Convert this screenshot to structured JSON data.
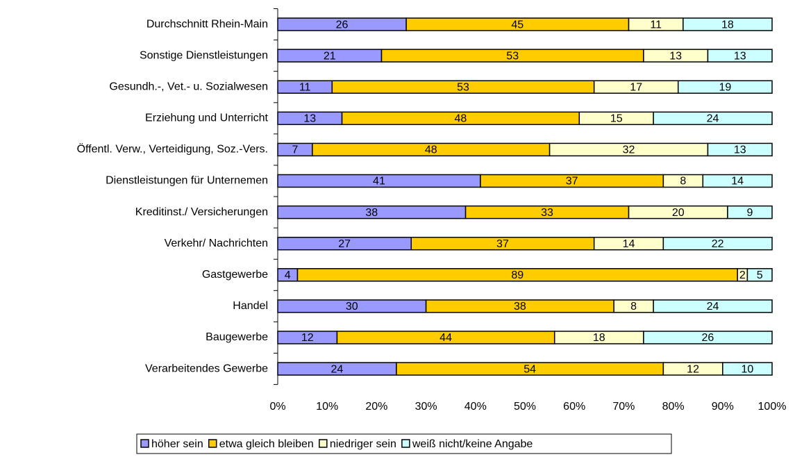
{
  "chart_data": {
    "type": "stacked-bar-horizontal",
    "categories": [
      "Durchschnitt Rhein-Main",
      "Sonstige Dienstleistungen",
      "Gesundh.-, Vet.- u. Sozialwesen",
      "Erziehung und Unterricht",
      "Öffentl. Verw., Verteidigung, Soz.-Vers.",
      "Dienstleistungen für Unternemen",
      "Kreditinst./ Versicherungen",
      "Verkehr/ Nachrichten",
      "Gastgewerbe",
      "Handel",
      "Baugewerbe",
      "Verarbeitendes Gewerbe"
    ],
    "series": [
      {
        "name": "höher sein",
        "color": "#9999ff",
        "values": [
          26,
          21,
          11,
          13,
          7,
          41,
          38,
          27,
          4,
          30,
          12,
          24
        ]
      },
      {
        "name": "etwa gleich bleiben",
        "color": "#ffcc00",
        "values": [
          45,
          53,
          53,
          48,
          48,
          37,
          33,
          37,
          89,
          38,
          44,
          54
        ]
      },
      {
        "name": "niedriger sein",
        "color": "#ffffcc",
        "values": [
          11,
          13,
          17,
          15,
          32,
          8,
          20,
          14,
          2,
          8,
          18,
          12
        ]
      },
      {
        "name": "weiß nicht/keine Angabe",
        "color": "#ccffff",
        "values": [
          18,
          13,
          19,
          24,
          13,
          14,
          9,
          22,
          5,
          24,
          26,
          10
        ]
      }
    ],
    "xlim": [
      0,
      100
    ],
    "xticks": [
      {
        "value": 0,
        "label": "0%"
      },
      {
        "value": 10,
        "label": "10%"
      },
      {
        "value": 20,
        "label": "20%"
      },
      {
        "value": 30,
        "label": "30%"
      },
      {
        "value": 40,
        "label": "40%"
      },
      {
        "value": 50,
        "label": "50%"
      },
      {
        "value": 60,
        "label": "60%"
      },
      {
        "value": 70,
        "label": "70%"
      },
      {
        "value": 80,
        "label": "80%"
      },
      {
        "value": 90,
        "label": "90%"
      },
      {
        "value": 100,
        "label": "100%"
      }
    ],
    "legend": "bottom"
  }
}
